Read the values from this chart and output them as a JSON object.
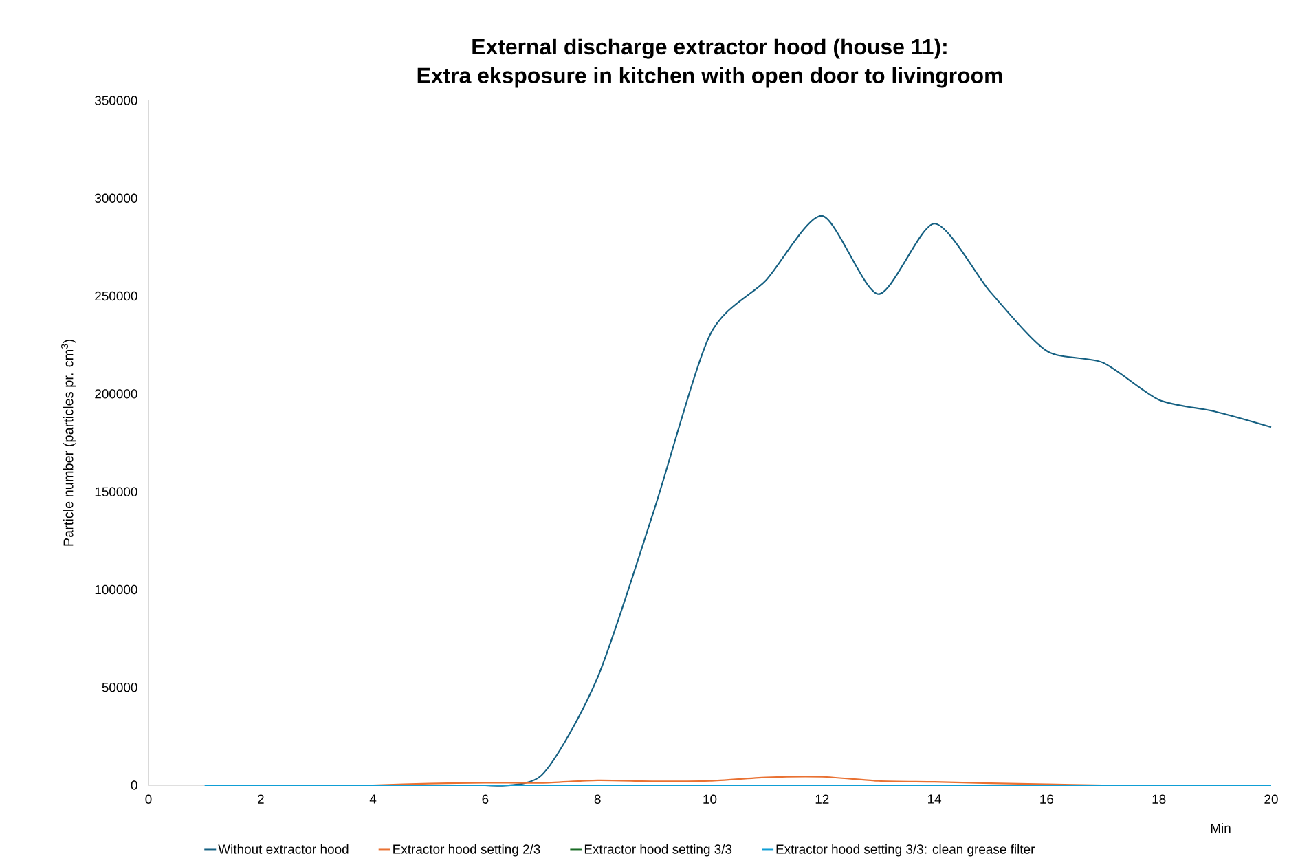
{
  "chart_data": {
    "type": "line",
    "title": "External discharge extractor hood (house 11):",
    "subtitle": "Extra eksposure in kitchen with open door to livingroom",
    "xlabel": "Min",
    "ylabel": "Particle number (particles pr. cm$^{3}$)",
    "x": [
      1,
      2,
      3,
      4,
      5,
      6,
      7,
      8,
      9,
      10,
      11,
      12,
      13,
      14,
      15,
      16,
      17,
      18,
      19,
      20
    ],
    "series": [
      {
        "name": "Without extractor hood",
        "color": "#156082",
        "values": [
          null,
          null,
          null,
          null,
          null,
          0,
          5000,
          55000,
          140000,
          230000,
          258000,
          291000,
          251000,
          287000,
          252000,
          222000,
          216000,
          197000,
          191000,
          183000
        ]
      },
      {
        "name": "Extractor hood setting 2/3",
        "color": "#e97132",
        "values": [
          null,
          null,
          null,
          0,
          800,
          1300,
          1200,
          2500,
          2000,
          2200,
          4000,
          4300,
          2200,
          1700,
          1000,
          500,
          0,
          null,
          null,
          null
        ]
      },
      {
        "name": "Extractor hood setting 3/3",
        "color": "#196b24",
        "values": [
          null,
          null,
          null,
          null,
          null,
          null,
          null,
          null,
          null,
          null,
          null,
          null,
          null,
          null,
          null,
          null,
          null,
          null,
          null,
          null
        ]
      },
      {
        "name": "Extractor hood setting 3/3: clean grease filter",
        "color": "#0f9ed5",
        "values": [
          0,
          0,
          0,
          0,
          0,
          0,
          0,
          0,
          0,
          0,
          0,
          0,
          0,
          0,
          0,
          0,
          0,
          0,
          0,
          0
        ]
      }
    ],
    "xlim": [
      0,
      20
    ],
    "xticks": [
      0,
      2,
      4,
      6,
      8,
      10,
      12,
      14,
      16,
      18,
      20
    ],
    "ylim": [
      0,
      350000
    ],
    "yticks": [
      0,
      50000,
      100000,
      150000,
      200000,
      250000,
      300000,
      350000
    ],
    "grid": false,
    "legend": "bottom",
    "marker": "none",
    "line_style": "solid"
  }
}
